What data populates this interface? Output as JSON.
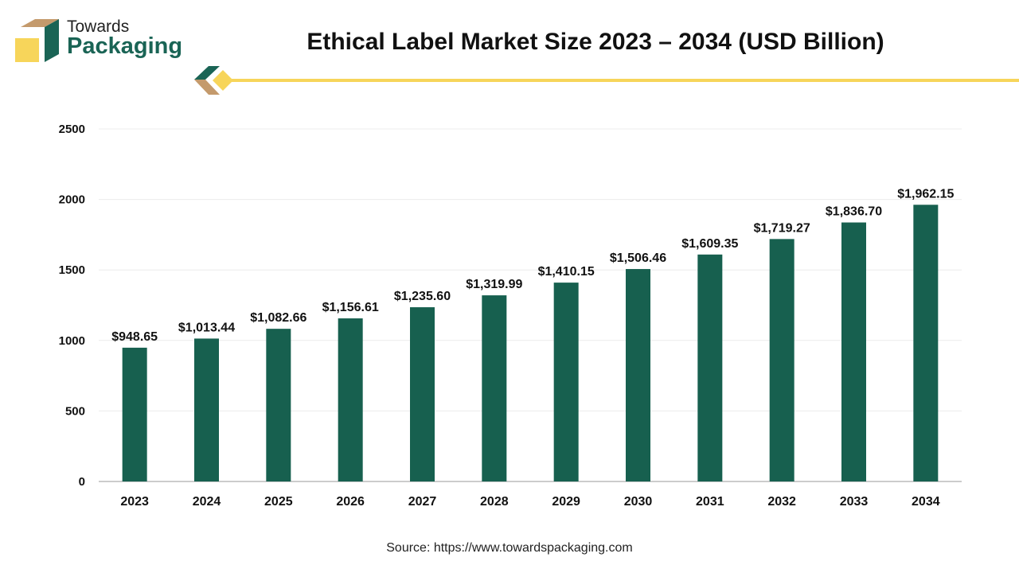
{
  "logo": {
    "line1": "Towards",
    "line2": "Packaging"
  },
  "colors": {
    "bar": "#17604f",
    "accent_yellow": "#f7d55a",
    "accent_tan": "#c49a6c",
    "brand_green": "#1a6455"
  },
  "source": "Source: https://www.towardspackaging.com",
  "chart_data": {
    "type": "bar",
    "title": "Ethical Label Market Size 2023 – 2034 (USD Billion)",
    "categories": [
      "2023",
      "2024",
      "2025",
      "2026",
      "2027",
      "2028",
      "2029",
      "2030",
      "2031",
      "2032",
      "2033",
      "2034"
    ],
    "values": [
      948.65,
      1013.44,
      1082.66,
      1156.61,
      1235.6,
      1319.99,
      1410.15,
      1506.46,
      1609.35,
      1719.27,
      1836.7,
      1962.15
    ],
    "data_labels": [
      "$948.65",
      "$1,013.44",
      "$1,082.66",
      "$1,156.61",
      "$1,235.60",
      "$1,319.99",
      "$1,410.15",
      "$1,506.46",
      "$1,609.35",
      "$1,719.27",
      "$1,836.70",
      "$1,962.15"
    ],
    "yticks": [
      "0",
      "500",
      "1000",
      "1500",
      "2000",
      "2500"
    ],
    "ylim": [
      0,
      2500
    ],
    "grid": true,
    "xlabel": "",
    "ylabel": ""
  }
}
